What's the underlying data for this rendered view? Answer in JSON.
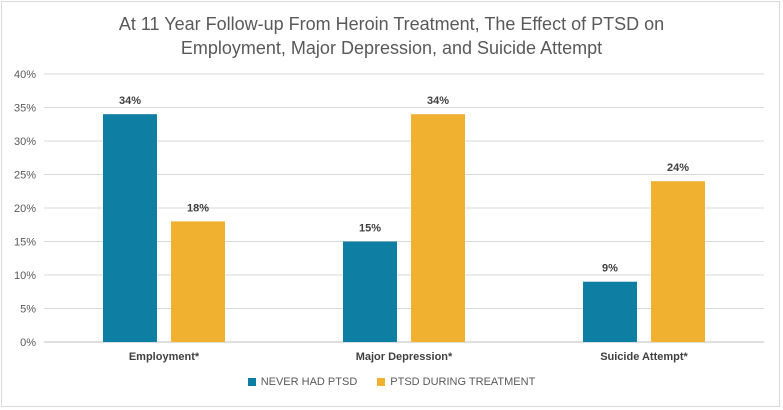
{
  "chart_data": {
    "type": "bar",
    "title_line1": "At 11 Year Follow-up From Heroin Treatment, The Effect of PTSD on",
    "title_line2": "Employment, Major Depression, and Suicide Attempt",
    "xlabel": "",
    "ylabel": "",
    "categories": [
      "Employment*",
      "Major Depression*",
      "Suicide Attempt*"
    ],
    "series": [
      {
        "name": "NEVER HAD PTSD",
        "color": "#0e7ea3",
        "values": [
          34,
          15,
          9
        ],
        "labels": [
          "34%",
          "15%",
          "9%"
        ]
      },
      {
        "name": "PTSD DURING TREATMENT",
        "color": "#f0b030",
        "values": [
          18,
          34,
          24
        ],
        "labels": [
          "18%",
          "34%",
          "24%"
        ]
      }
    ],
    "ylim": [
      0,
      40
    ],
    "yticks": [
      "0%",
      "5%",
      "10%",
      "15%",
      "20%",
      "25%",
      "30%",
      "35%",
      "40%"
    ],
    "grid": true,
    "legend_position": "bottom"
  }
}
